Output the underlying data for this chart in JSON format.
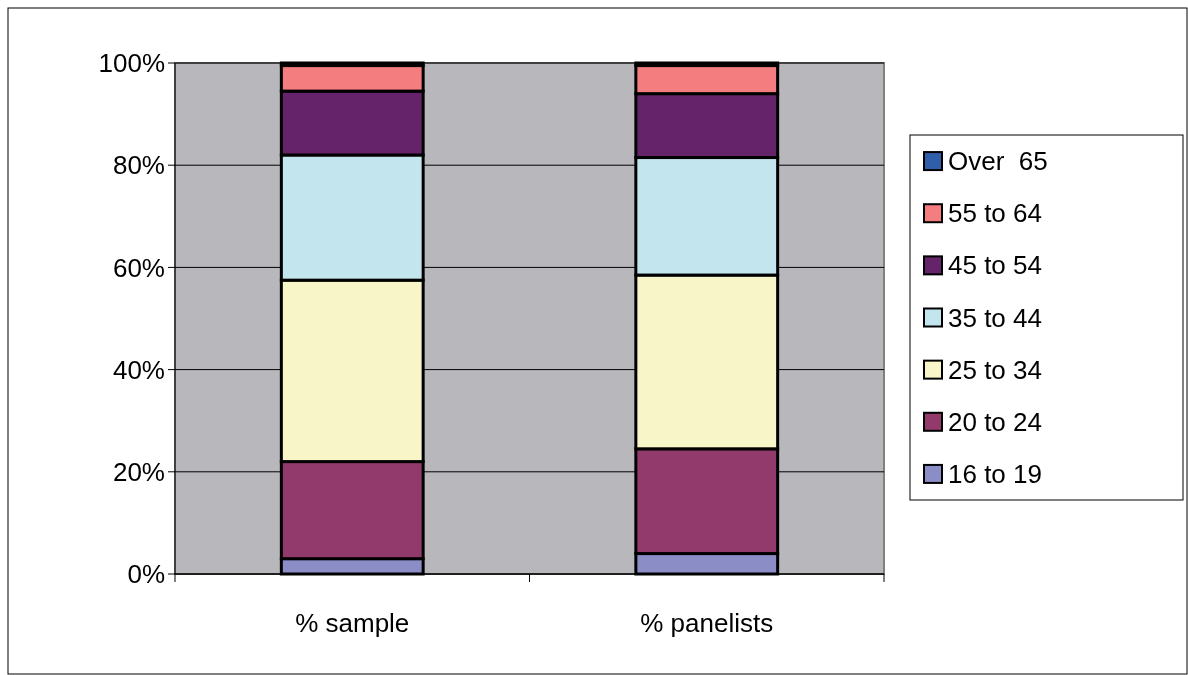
{
  "chart_data": {
    "type": "bar",
    "stacked": true,
    "categories": [
      "% sample",
      "% panelists"
    ],
    "series": [
      {
        "name": "16 to 19",
        "color": "#8b8dc6",
        "values": [
          3,
          4
        ]
      },
      {
        "name": "20 to 24",
        "color": "#933a6c",
        "values": [
          19,
          20.5
        ]
      },
      {
        "name": "25 to 34",
        "color": "#f8f5c8",
        "values": [
          35.5,
          34
        ]
      },
      {
        "name": "35 to 44",
        "color": "#c3e6ee",
        "values": [
          24.5,
          23
        ]
      },
      {
        "name": "45 to 54",
        "color": "#65236a",
        "values": [
          12.5,
          12.5
        ]
      },
      {
        "name": "55 to 64",
        "color": "#f37d7f",
        "values": [
          5,
          5.5
        ]
      },
      {
        "name": "Over  65",
        "color": "#2f5fa8",
        "values": [
          0.5,
          0.5
        ]
      }
    ],
    "ylim": [
      0,
      100
    ],
    "yticks": [
      {
        "value": 0,
        "label": "0%"
      },
      {
        "value": 20,
        "label": "20%"
      },
      {
        "value": 40,
        "label": "40%"
      },
      {
        "value": 60,
        "label": "60%"
      },
      {
        "value": 80,
        "label": "80%"
      },
      {
        "value": 100,
        "label": "100%"
      }
    ],
    "grid": "y",
    "legend": "right"
  }
}
